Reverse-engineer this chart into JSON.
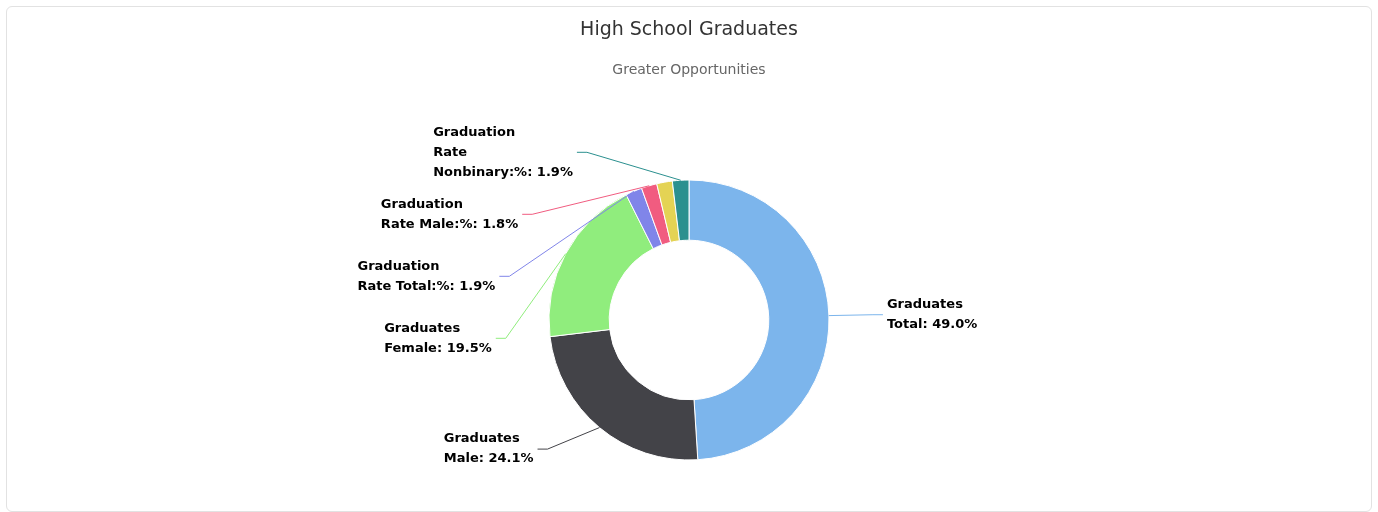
{
  "chart_data": {
    "type": "donut",
    "title": "High School Graduates",
    "subtitle": "Greater Opportunities",
    "categories": [
      "Graduates Total",
      "Graduates Male",
      "Graduates Female",
      "Graduation Rate Total:%",
      "Graduation Rate Male:%",
      null,
      "Graduation Rate Nonbinary:%"
    ],
    "values": [
      49.0,
      24.1,
      19.5,
      1.9,
      1.8,
      1.8,
      1.9
    ],
    "value_labels": [
      "49.0%",
      "24.1%",
      "19.5%",
      "1.9%",
      "1.8%",
      null,
      "1.9%"
    ],
    "colors": [
      "#7cb5ec",
      "#434348",
      "#90ed7d",
      "#8085e9",
      "#f15c80",
      "#e4d354",
      "#2b908f"
    ],
    "legend": false
  }
}
